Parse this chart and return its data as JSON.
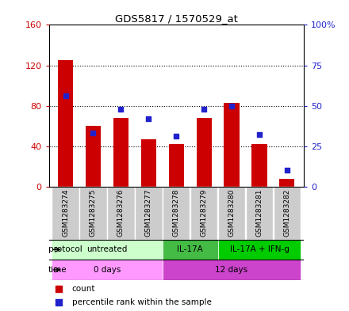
{
  "title": "GDS5817 / 1570529_at",
  "samples": [
    "GSM1283274",
    "GSM1283275",
    "GSM1283276",
    "GSM1283277",
    "GSM1283278",
    "GSM1283279",
    "GSM1283280",
    "GSM1283281",
    "GSM1283282"
  ],
  "counts": [
    125,
    60,
    68,
    47,
    42,
    68,
    83,
    42,
    8
  ],
  "percentiles": [
    56,
    33,
    48,
    42,
    31,
    48,
    50,
    32,
    10
  ],
  "ylim_left": [
    0,
    160
  ],
  "ylim_right": [
    0,
    100
  ],
  "yticks_left": [
    0,
    40,
    80,
    120,
    160
  ],
  "ytick_labels_left": [
    "0",
    "40",
    "80",
    "120",
    "160"
  ],
  "ytick_labels_right": [
    "0",
    "25",
    "50",
    "75",
    "100%"
  ],
  "bar_color": "#cc0000",
  "dot_color": "#2222cc",
  "grid_color": "#000000",
  "protocol_groups": [
    {
      "label": "untreated",
      "start": 0,
      "end": 4,
      "color": "#ccffcc"
    },
    {
      "label": "IL-17A",
      "start": 4,
      "end": 6,
      "color": "#44bb44"
    },
    {
      "label": "IL-17A + IFN-g",
      "start": 6,
      "end": 9,
      "color": "#00cc00"
    }
  ],
  "time_groups": [
    {
      "label": "0 days",
      "start": 0,
      "end": 4,
      "color": "#ff88ff"
    },
    {
      "label": "12 days",
      "start": 4,
      "end": 9,
      "color": "#cc44cc"
    }
  ],
  "bg_color": "#ffffff",
  "sample_box_color": "#cccccc"
}
